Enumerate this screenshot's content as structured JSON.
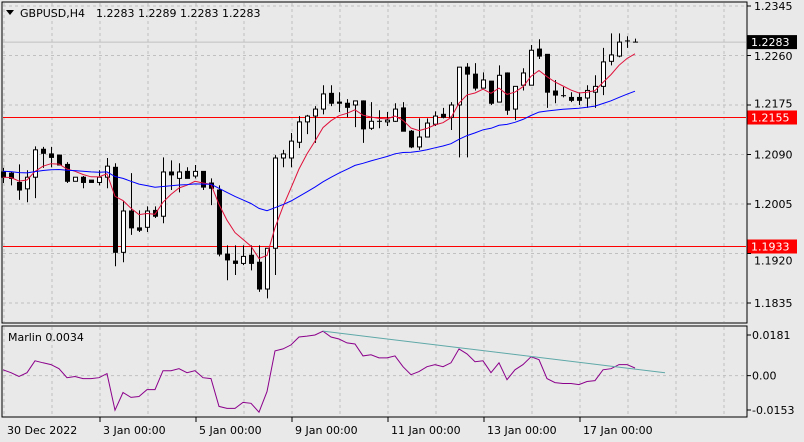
{
  "header": {
    "symbol_timeframe": "GBPUSD,H4",
    "ohlc": "1.2283 1.2289 1.2283 1.2283",
    "menu_icon": "triangle-down-icon"
  },
  "colors": {
    "background": "#e9e9e9",
    "bull_body": "#ffffff",
    "bear_body": "#000000",
    "fast_ma": "#e0103a",
    "slow_ma": "#0000ff",
    "level_line": "#ff0000",
    "oscillator": "#8b008b",
    "trendline": "#5fa8a8",
    "grid": "#c0c0c0"
  },
  "price_axis": {
    "ticks": [
      "1.2345",
      "1.2260",
      "1.2175",
      "1.2090",
      "1.2005",
      "1.1920",
      "1.1835"
    ],
    "range": [
      1.1835,
      1.2345
    ]
  },
  "current_price": {
    "label": "1.2283",
    "value": 1.2283
  },
  "levels": [
    {
      "label": "1.2155",
      "value": 1.2155
    },
    {
      "label": "1.1933",
      "value": 1.1933
    }
  ],
  "time_axis": {
    "labels": [
      {
        "text": "30 Dec 2022",
        "bar": 0
      },
      {
        "text": "3 Jan 00:00",
        "bar": 12
      },
      {
        "text": "5 Jan 00:00",
        "bar": 24
      },
      {
        "text": "9 Jan 00:00",
        "bar": 36
      },
      {
        "text": "11 Jan 00:00",
        "bar": 48
      },
      {
        "text": "13 Jan 00:00",
        "bar": 60
      },
      {
        "text": "17 Jan 00:00",
        "bar": 72
      }
    ]
  },
  "indicator": {
    "label": "Marlin 0.0034",
    "ticks": [
      "0.0181",
      "0.00",
      "-0.0153"
    ],
    "range": [
      -0.0153,
      0.0181
    ],
    "values": [
      0.0026,
      0.0013,
      -0.0004,
      0.0013,
      0.0066,
      0.0057,
      0.0049,
      0.0031,
      -0.0009,
      -0.0004,
      -0.0013,
      -0.0013,
      -0.0009,
      0.0009,
      -0.0154,
      -0.0075,
      -0.0097,
      -0.0093,
      -0.0062,
      -0.0062,
      0.0022,
      0.0022,
      0.0031,
      0.0013,
      0.0022,
      -0.0009,
      -0.0013,
      -0.0137,
      -0.0146,
      -0.0146,
      -0.0119,
      -0.0123,
      -0.0163,
      -0.0071,
      0.011,
      0.0119,
      0.0137,
      0.0172,
      0.0176,
      0.0181,
      0.0198,
      0.0172,
      0.0163,
      0.0146,
      0.0141,
      0.0088,
      0.0093,
      0.0079,
      0.0079,
      0.0088,
      0.004,
      0.0004,
      0.0018,
      0.004,
      0.0049,
      0.004,
      0.0057,
      0.0119,
      0.0097,
      0.0062,
      0.0066,
      0.0013,
      0.0057,
      -0.0018,
      0.0026,
      0.0049,
      0.0084,
      0.0071,
      -0.0013,
      -0.0031,
      -0.0035,
      -0.0035,
      -0.004,
      -0.0026,
      -0.0022,
      0.0026,
      0.0031,
      0.0049,
      0.0049,
      0.0034
    ],
    "trendline": {
      "from": {
        "bar": 40,
        "value": 0.0198
      },
      "to": {
        "bar": 82.75,
        "value": 0.0013
      }
    }
  },
  "chart_data": {
    "type": "candlestick",
    "ohlc": [
      [
        1.206,
        1.2067,
        1.2041,
        1.2051
      ],
      [
        1.2058,
        1.206,
        1.2037,
        1.2049
      ],
      [
        1.2042,
        1.2073,
        1.2012,
        1.2029
      ],
      [
        1.2031,
        1.2063,
        1.2008,
        1.2051
      ],
      [
        1.2051,
        1.2104,
        1.2015,
        1.2098
      ],
      [
        1.2099,
        1.2103,
        1.2067,
        1.2092
      ],
      [
        1.2091,
        1.2103,
        1.2068,
        1.2085
      ],
      [
        1.2089,
        1.2089,
        1.2072,
        1.2072
      ],
      [
        1.2073,
        1.2077,
        1.2041,
        1.2044
      ],
      [
        1.2044,
        1.2051,
        1.2044,
        1.2051
      ],
      [
        1.2051,
        1.2053,
        1.2032,
        1.2042
      ],
      [
        1.2046,
        1.2046,
        1.2042,
        1.2042
      ],
      [
        1.2042,
        1.2063,
        1.2037,
        1.2051
      ],
      [
        1.2051,
        1.2084,
        1.2032,
        1.207
      ],
      [
        1.2068,
        1.2075,
        1.1898,
        1.1922
      ],
      [
        1.1922,
        1.201,
        1.1905,
        1.1993
      ],
      [
        1.1993,
        1.2058,
        1.1952,
        1.1964
      ],
      [
        1.1964,
        1.1994,
        1.1957,
        1.196
      ],
      [
        1.1965,
        1.2001,
        1.1957,
        1.1993
      ],
      [
        1.1994,
        1.2001,
        1.1981,
        1.1984
      ],
      [
        1.1984,
        1.2085,
        1.1972,
        1.206
      ],
      [
        1.206,
        1.208,
        1.2029,
        1.2055
      ],
      [
        1.2049,
        1.2075,
        1.2025,
        1.206
      ],
      [
        1.2061,
        1.2068,
        1.2049,
        1.2049
      ],
      [
        1.2053,
        1.2072,
        1.2049,
        1.2061
      ],
      [
        1.2061,
        1.2061,
        1.2029,
        1.2034
      ],
      [
        1.2041,
        1.2049,
        1.2003,
        1.2032
      ],
      [
        1.2029,
        1.2037,
        1.1915,
        1.1919
      ],
      [
        1.1919,
        1.1934,
        1.1874,
        1.1909
      ],
      [
        1.1907,
        1.1934,
        1.1883,
        1.1903
      ],
      [
        1.1903,
        1.1934,
        1.19,
        1.1915
      ],
      [
        1.1917,
        1.1934,
        1.1891,
        1.1903
      ],
      [
        1.1905,
        1.1934,
        1.1854,
        1.1859
      ],
      [
        1.1859,
        1.1929,
        1.1843,
        1.1929
      ],
      [
        1.1929,
        1.2089,
        1.1883,
        1.2084
      ],
      [
        1.2084,
        1.2098,
        1.2068,
        1.2091
      ],
      [
        1.2084,
        1.2127,
        1.2068,
        1.2113
      ],
      [
        1.2111,
        1.2156,
        1.2101,
        1.2146
      ],
      [
        1.2146,
        1.2158,
        1.2125,
        1.2156
      ],
      [
        1.2156,
        1.2173,
        1.211,
        1.2168
      ],
      [
        1.2168,
        1.2209,
        1.2159,
        1.2194
      ],
      [
        1.2195,
        1.2209,
        1.2173,
        1.2178
      ],
      [
        1.218,
        1.2197,
        1.2163,
        1.2178
      ],
      [
        1.2178,
        1.2185,
        1.2154,
        1.2171
      ],
      [
        1.2175,
        1.2182,
        1.2137,
        1.2182
      ],
      [
        1.2182,
        1.2183,
        1.211,
        1.2134
      ],
      [
        1.2135,
        1.218,
        1.2132,
        1.2147
      ],
      [
        1.2147,
        1.2166,
        1.2135,
        1.2146
      ],
      [
        1.2146,
        1.2163,
        1.2139,
        1.2149
      ],
      [
        1.2147,
        1.2178,
        1.2146,
        1.2168
      ],
      [
        1.217,
        1.218,
        1.213,
        1.213
      ],
      [
        1.213,
        1.2132,
        1.2101,
        1.2103
      ],
      [
        1.2103,
        1.2152,
        1.2098,
        1.212
      ],
      [
        1.212,
        1.2152,
        1.212,
        1.2144
      ],
      [
        1.2142,
        1.2164,
        1.2139,
        1.2156
      ],
      [
        1.2159,
        1.217,
        1.2152,
        1.2154
      ],
      [
        1.2154,
        1.218,
        1.2132,
        1.2175
      ],
      [
        1.2175,
        1.224,
        1.2085,
        1.224
      ],
      [
        1.224,
        1.2247,
        1.2085,
        1.2228
      ],
      [
        1.2228,
        1.2247,
        1.22,
        1.2204
      ],
      [
        1.2204,
        1.2231,
        1.2204,
        1.2218
      ],
      [
        1.2216,
        1.2216,
        1.2175,
        1.2178
      ],
      [
        1.218,
        1.2243,
        1.218,
        1.2226
      ],
      [
        1.223,
        1.2231,
        1.2158,
        1.2166
      ],
      [
        1.2168,
        1.2207,
        1.2149,
        1.2207
      ],
      [
        1.2209,
        1.2238,
        1.22,
        1.223
      ],
      [
        1.2209,
        1.2278,
        1.2209,
        1.2269
      ],
      [
        1.2271,
        1.2288,
        1.2254,
        1.2259
      ],
      [
        1.2262,
        1.2262,
        1.217,
        1.2197
      ],
      [
        1.2199,
        1.2218,
        1.2178,
        1.2192
      ],
      [
        1.2191,
        1.2206,
        1.2188,
        1.219
      ],
      [
        1.2188,
        1.2197,
        1.218,
        1.2183
      ],
      [
        1.2188,
        1.2197,
        1.2175,
        1.2183
      ],
      [
        1.2187,
        1.2209,
        1.217,
        1.22
      ],
      [
        1.2197,
        1.2226,
        1.217,
        1.2207
      ],
      [
        1.2207,
        1.2273,
        1.2192,
        1.2249
      ],
      [
        1.225,
        1.2298,
        1.2243,
        1.2261
      ],
      [
        1.2259,
        1.2298,
        1.2257,
        1.2283
      ],
      [
        1.2285,
        1.2293,
        1.2273,
        1.2284
      ],
      [
        1.2283,
        1.2289,
        1.2283,
        1.2283
      ]
    ],
    "grid": true
  }
}
